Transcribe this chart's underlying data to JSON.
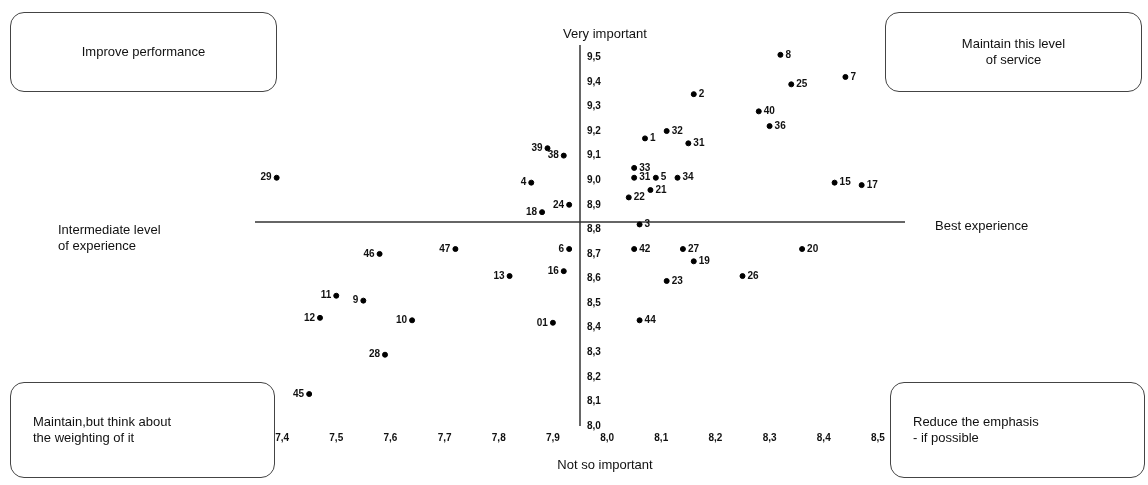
{
  "chart_data": {
    "type": "scatter",
    "marker": "circle",
    "grid": false,
    "legend": false,
    "annotations": [
      "Very important",
      "Not so important",
      "Intermediate level\nof experience",
      "Best experience",
      "Improve performance",
      "Maintain this level\nof service",
      "Maintain,but think about\nthe weighting of it",
      "Reduce the emphasis\n- if possible",
      {
        "text": "29",
        "x": 7.39,
        "y": 9.01
      },
      {
        "text": "39",
        "x": 7.89,
        "y": 9.13
      },
      {
        "text": "38",
        "x": 7.92,
        "y": 9.1
      },
      {
        "text": "4",
        "x": 7.86,
        "y": 8.99
      },
      {
        "text": "24",
        "x": 7.93,
        "y": 8.9
      },
      {
        "text": "18",
        "x": 7.88,
        "y": 8.87
      },
      {
        "text": "46",
        "x": 7.58,
        "y": 8.7
      },
      {
        "text": "47",
        "x": 7.72,
        "y": 8.72
      },
      {
        "text": "6",
        "x": 7.93,
        "y": 8.72
      },
      {
        "text": "13",
        "x": 7.82,
        "y": 8.61
      },
      {
        "text": "16",
        "x": 7.92,
        "y": 8.63
      },
      {
        "text": "11",
        "x": 7.5,
        "y": 8.53
      },
      {
        "text": "9",
        "x": 7.55,
        "y": 8.51
      },
      {
        "text": "12",
        "x": 7.47,
        "y": 8.44
      },
      {
        "text": "10",
        "x": 7.64,
        "y": 8.43
      },
      {
        "text": "01",
        "x": 7.9,
        "y": 8.42
      },
      {
        "text": "28",
        "x": 7.59,
        "y": 8.29
      },
      {
        "text": "45",
        "x": 7.45,
        "y": 8.13
      },
      {
        "text": "8",
        "x": 8.32,
        "y": 9.51
      },
      {
        "text": "25",
        "x": 8.34,
        "y": 9.39
      },
      {
        "text": "7",
        "x": 8.44,
        "y": 9.42
      },
      {
        "text": "2",
        "x": 8.16,
        "y": 9.35
      },
      {
        "text": "40",
        "x": 8.28,
        "y": 9.28
      },
      {
        "text": "36",
        "x": 8.3,
        "y": 9.22
      },
      {
        "text": "1",
        "x": 8.07,
        "y": 9.17
      },
      {
        "text": "32",
        "x": 8.11,
        "y": 9.2
      },
      {
        "text": "31",
        "x": 8.15,
        "y": 9.15
      },
      {
        "text": "33",
        "x": 8.05,
        "y": 9.05
      },
      {
        "text": "31",
        "x": 8.05,
        "y": 9.01
      },
      {
        "text": "5",
        "x": 8.09,
        "y": 9.01
      },
      {
        "text": "34",
        "x": 8.13,
        "y": 9.01
      },
      {
        "text": "21",
        "x": 8.08,
        "y": 8.96
      },
      {
        "text": "22",
        "x": 8.04,
        "y": 8.93
      },
      {
        "text": "3",
        "x": 8.06,
        "y": 8.82
      },
      {
        "text": "15",
        "x": 8.42,
        "y": 8.99
      },
      {
        "text": "17",
        "x": 8.47,
        "y": 8.98
      },
      {
        "text": "42",
        "x": 8.05,
        "y": 8.72
      },
      {
        "text": "27",
        "x": 8.14,
        "y": 8.72
      },
      {
        "text": "19",
        "x": 8.16,
        "y": 8.67
      },
      {
        "text": "20",
        "x": 8.36,
        "y": 8.72
      },
      {
        "text": "23",
        "x": 8.11,
        "y": 8.59
      },
      {
        "text": "26",
        "x": 8.25,
        "y": 8.61
      },
      {
        "text": "44",
        "x": 8.06,
        "y": 8.43
      }
    ],
    "xlim": [
      7.35,
      8.55
    ],
    "xticks": [
      {
        "value": 7.4,
        "label": "7,4"
      },
      {
        "value": 7.5,
        "label": "7,5"
      },
      {
        "value": 7.6,
        "label": "7,6"
      },
      {
        "value": 7.7,
        "label": "7,7"
      },
      {
        "value": 7.8,
        "label": "7,8"
      },
      {
        "value": 7.9,
        "label": "7,9"
      },
      {
        "value": 8.0,
        "label": "8,0"
      },
      {
        "value": 8.1,
        "label": "8,1"
      },
      {
        "value": 8.2,
        "label": "8,2"
      },
      {
        "value": 8.3,
        "label": "8,3"
      },
      {
        "value": 8.4,
        "label": "8,4"
      },
      {
        "value": 8.5,
        "label": "8,5"
      }
    ],
    "ylim": [
      8.0,
      9.55
    ],
    "yticks": [
      {
        "value": 8.0,
        "label": "8,0"
      },
      {
        "value": 8.1,
        "label": "8,1"
      },
      {
        "value": 8.2,
        "label": "8,2"
      },
      {
        "value": 8.3,
        "label": "8,3"
      },
      {
        "value": 8.4,
        "label": "8,4"
      },
      {
        "value": 8.5,
        "label": "8,5"
      },
      {
        "value": 8.6,
        "label": "8,6"
      },
      {
        "value": 8.7,
        "label": "8,7"
      },
      {
        "value": 8.8,
        "label": "8,8"
      },
      {
        "value": 8.9,
        "label": "8,9"
      },
      {
        "value": 9.0,
        "label": "9,0"
      },
      {
        "value": 9.1,
        "label": "9,1"
      },
      {
        "value": 9.2,
        "label": "9,2"
      },
      {
        "value": 9.3,
        "label": "9,3"
      },
      {
        "value": 9.4,
        "label": "9,4"
      },
      {
        "value": 9.5,
        "label": "9,5"
      }
    ],
    "ref_lines": [
      {
        "axis": "y",
        "value": 8.83
      }
    ],
    "series": [
      {
        "color": "#000000",
        "x": [
          7.39,
          7.89,
          7.92,
          7.86,
          7.93,
          7.88,
          7.58,
          7.72,
          7.93,
          7.82,
          7.92,
          7.5,
          7.55,
          7.47,
          7.64,
          7.9,
          7.59,
          7.45,
          8.32,
          8.34,
          8.44,
          8.16,
          8.28,
          8.3,
          8.07,
          8.11,
          8.15,
          8.05,
          8.05,
          8.09,
          8.13,
          8.08,
          8.04,
          8.06,
          8.42,
          8.47,
          8.05,
          8.14,
          8.16,
          8.36,
          8.11,
          8.25,
          8.06
        ],
        "values": [
          9.01,
          9.13,
          9.1,
          8.99,
          8.9,
          8.87,
          8.7,
          8.72,
          8.72,
          8.61,
          8.63,
          8.53,
          8.51,
          8.44,
          8.43,
          8.42,
          8.29,
          8.13,
          9.51,
          9.39,
          9.42,
          9.35,
          9.28,
          9.22,
          9.17,
          9.2,
          9.15,
          9.05,
          9.01,
          9.01,
          9.01,
          8.96,
          8.93,
          8.82,
          8.99,
          8.98,
          8.72,
          8.72,
          8.67,
          8.72,
          8.59,
          8.61,
          8.43
        ]
      }
    ]
  }
}
